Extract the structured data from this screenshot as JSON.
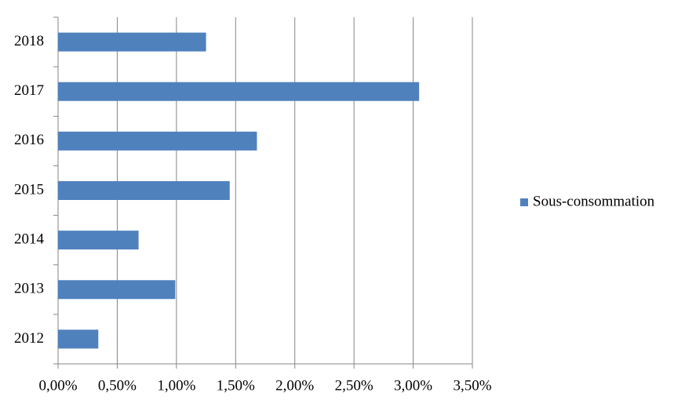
{
  "chart_data": {
    "type": "bar",
    "orientation": "horizontal",
    "categories": [
      "2012",
      "2013",
      "2014",
      "2015",
      "2016",
      "2017",
      "2018"
    ],
    "series": [
      {
        "name": "Sous-consommation",
        "color": "#4f81bd",
        "values": [
          0.34,
          0.99,
          0.68,
          1.45,
          1.68,
          3.05,
          1.25
        ]
      }
    ],
    "xlim": [
      0,
      3.5
    ],
    "xticks": [
      {
        "value": 0,
        "label": "0,00%"
      },
      {
        "value": 0.5,
        "label": "0,50%"
      },
      {
        "value": 1,
        "label": "1,00%"
      },
      {
        "value": 1.5,
        "label": "1,50%"
      },
      {
        "value": 2,
        "label": "2,00%"
      },
      {
        "value": 2.5,
        "label": "2,50%"
      },
      {
        "value": 3,
        "label": "3,00%"
      },
      {
        "value": 3.5,
        "label": "3,50%"
      }
    ],
    "grid": true,
    "legend": "right"
  }
}
